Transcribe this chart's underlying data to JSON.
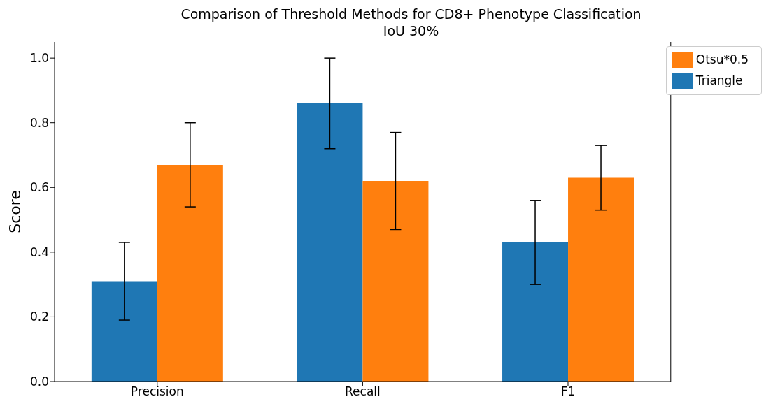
{
  "chart_data": {
    "type": "bar",
    "title": "Comparison of Threshold Methods for CD8+ Phenotype Classification",
    "subtitle": "IoU 30%",
    "ylabel": "Score",
    "categories": [
      "Precision",
      "Recall",
      "F1"
    ],
    "series": [
      {
        "name": "Triangle",
        "color": "#1f77b4",
        "values": [
          0.31,
          0.86,
          0.43
        ],
        "errors": [
          0.12,
          0.14,
          0.13
        ]
      },
      {
        "name": "Otsu*0.5",
        "color": "#ff7f0e",
        "values": [
          0.67,
          0.62,
          0.63
        ],
        "errors": [
          0.13,
          0.15,
          0.1
        ]
      }
    ],
    "ylim": [
      0,
      1.05
    ],
    "yticks": [
      {
        "value": 0,
        "label": "0.0"
      },
      {
        "value": 0.2,
        "label": "0.2"
      },
      {
        "value": 0.4,
        "label": "0.4"
      },
      {
        "value": 0.6,
        "label": "0.6"
      },
      {
        "value": 0.8,
        "label": "0.8"
      },
      {
        "value": 1,
        "label": "1.0"
      }
    ],
    "grid": false,
    "legend": "top right"
  }
}
